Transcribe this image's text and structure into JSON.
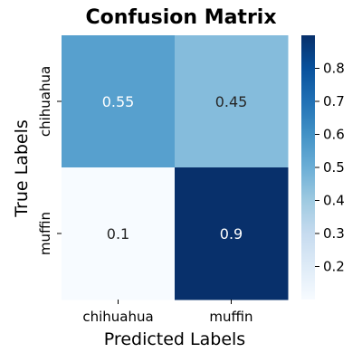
{
  "chart_data": {
    "type": "heatmap",
    "title": "Confusion Matrix",
    "xlabel": "Predicted Labels",
    "ylabel": "True Labels",
    "x_categories": [
      "chihuahua",
      "muffin"
    ],
    "y_categories": [
      "chihuahua",
      "muffin"
    ],
    "values": [
      [
        0.55,
        0.45
      ],
      [
        0.1,
        0.9
      ]
    ],
    "value_labels": [
      [
        "0.55",
        "0.45"
      ],
      [
        "0.1",
        "0.9"
      ]
    ],
    "colormap": "Blues",
    "vmin": 0.1,
    "vmax": 0.9,
    "colorbar": {
      "ticks": [
        0.2,
        0.3,
        0.4,
        0.5,
        0.6,
        0.7,
        0.8
      ],
      "tick_labels": [
        "0.2",
        "0.3",
        "0.4",
        "0.5",
        "0.6",
        "0.7",
        "0.8"
      ]
    },
    "colors": {
      "low": "#f7fbff",
      "high": "#08306b"
    }
  }
}
